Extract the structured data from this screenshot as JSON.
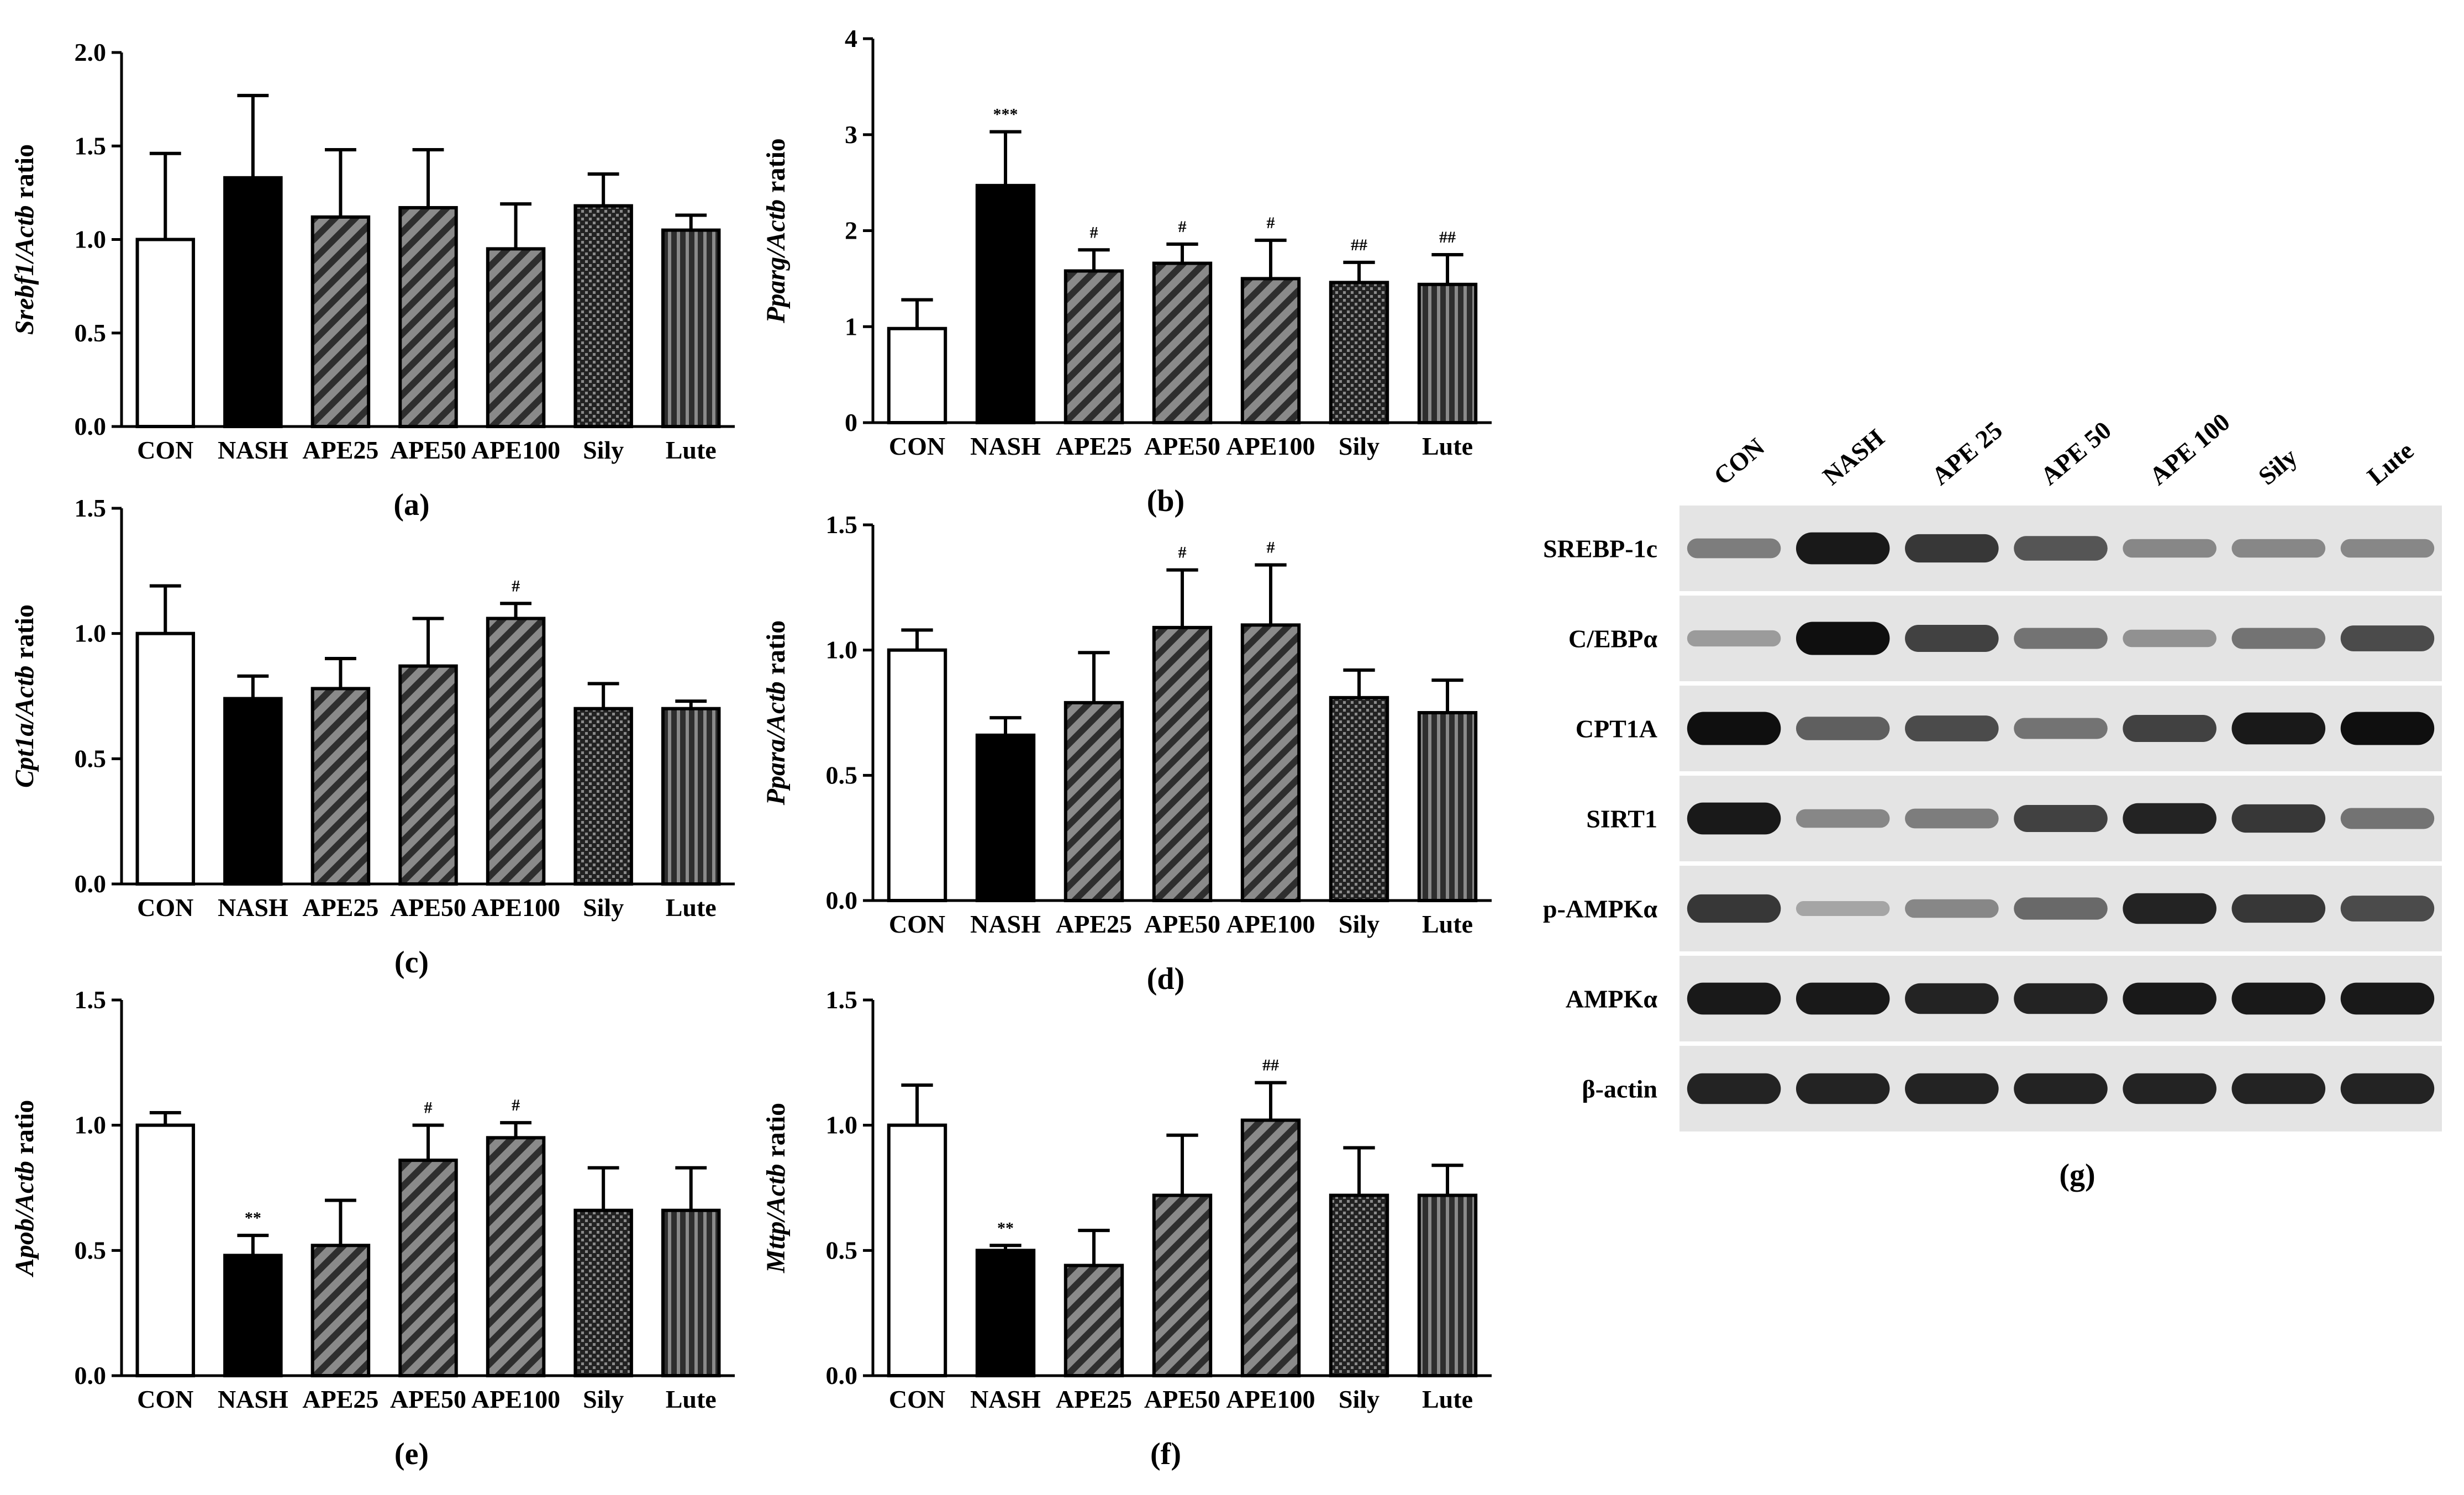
{
  "categories": [
    "CON",
    "NASH",
    "APE25",
    "APE50",
    "APE100",
    "Sily",
    "Lute"
  ],
  "chart_data": [
    {
      "type": "bar",
      "panel": "(a)",
      "ylabel_italic": "Srebf1/Actb",
      "ylabel_plain": " ratio",
      "ylim": [
        0,
        2.0
      ],
      "yticks": [
        "0.0",
        "0.5",
        "1.0",
        "1.5",
        "2.0"
      ],
      "values": [
        1.0,
        1.33,
        1.12,
        1.17,
        0.95,
        1.18,
        1.05
      ],
      "errors": [
        0.46,
        0.44,
        0.36,
        0.31,
        0.24,
        0.17,
        0.08
      ],
      "annotations": [
        "",
        "",
        "",
        "",
        "",
        "",
        ""
      ]
    },
    {
      "type": "bar",
      "panel": "(b)",
      "ylabel_italic": "Pparg/Actb",
      "ylabel_plain": " ratio",
      "ylim": [
        0,
        4
      ],
      "yticks": [
        "0",
        "1",
        "2",
        "3",
        "4"
      ],
      "values": [
        0.98,
        2.47,
        1.58,
        1.66,
        1.5,
        1.46,
        1.44
      ],
      "errors": [
        0.3,
        0.56,
        0.22,
        0.2,
        0.4,
        0.21,
        0.31
      ],
      "annotations": [
        "",
        "***",
        "#",
        "#",
        "#",
        "##",
        "##"
      ]
    },
    {
      "type": "bar",
      "panel": "(c)",
      "ylabel_italic": "Cpt1a/Actb",
      "ylabel_plain": " ratio",
      "ylim": [
        0,
        1.5
      ],
      "yticks": [
        "0.0",
        "0.5",
        "1.0",
        "1.5"
      ],
      "values": [
        1.0,
        0.74,
        0.78,
        0.87,
        1.06,
        0.7,
        0.7
      ],
      "errors": [
        0.19,
        0.09,
        0.12,
        0.19,
        0.06,
        0.1,
        0.03
      ],
      "annotations": [
        "",
        "",
        "",
        "",
        "#",
        "",
        ""
      ]
    },
    {
      "type": "bar",
      "panel": "(d)",
      "ylabel_italic": "Ppara/Actb",
      "ylabel_plain": " ratio",
      "ylim": [
        0,
        1.5
      ],
      "yticks": [
        "0.0",
        "0.5",
        "1.0",
        "1.5"
      ],
      "values": [
        1.0,
        0.66,
        0.79,
        1.09,
        1.1,
        0.81,
        0.75
      ],
      "errors": [
        0.08,
        0.07,
        0.2,
        0.23,
        0.24,
        0.11,
        0.13
      ],
      "annotations": [
        "",
        "",
        "",
        "#",
        "#",
        "",
        ""
      ]
    },
    {
      "type": "bar",
      "panel": "(e)",
      "ylabel_italic": "Apob/Actb",
      "ylabel_plain": " ratio",
      "ylim": [
        0,
        1.5
      ],
      "yticks": [
        "0.0",
        "0.5",
        "1.0",
        "1.5"
      ],
      "values": [
        1.0,
        0.48,
        0.52,
        0.86,
        0.95,
        0.66,
        0.66
      ],
      "errors": [
        0.05,
        0.08,
        0.18,
        0.14,
        0.06,
        0.17,
        0.17
      ],
      "annotations": [
        "",
        "**",
        "",
        "#",
        "#",
        "",
        ""
      ]
    },
    {
      "type": "bar",
      "panel": "(f)",
      "ylabel_italic": "Mttp/Actb",
      "ylabel_plain": " ratio",
      "ylim": [
        0,
        1.5
      ],
      "yticks": [
        "0.0",
        "0.5",
        "1.0",
        "1.5"
      ],
      "values": [
        1.0,
        0.5,
        0.44,
        0.72,
        1.02,
        0.72,
        0.72
      ],
      "errors": [
        0.16,
        0.02,
        0.14,
        0.24,
        0.15,
        0.19,
        0.12
      ],
      "annotations": [
        "",
        "**",
        "",
        "",
        "##",
        "",
        ""
      ]
    }
  ],
  "western_blot": {
    "panel": "(g)",
    "lanes": [
      "CON",
      "NASH",
      "APE 25",
      "APE 50",
      "APE 100",
      "Sily",
      "Lute"
    ],
    "rows": [
      {
        "label": "SREBP-1c",
        "intensity": [
          0.45,
          0.95,
          0.8,
          0.65,
          0.4,
          0.4,
          0.4
        ]
      },
      {
        "label": "C/EBPα",
        "intensity": [
          0.3,
          1.0,
          0.75,
          0.5,
          0.35,
          0.5,
          0.7
        ]
      },
      {
        "label": "CPT1A",
        "intensity": [
          1.0,
          0.6,
          0.7,
          0.5,
          0.75,
          0.95,
          1.0
        ]
      },
      {
        "label": "SIRT1",
        "intensity": [
          0.95,
          0.4,
          0.45,
          0.75,
          0.9,
          0.8,
          0.5
        ]
      },
      {
        "label": "p-AMPKα",
        "intensity": [
          0.8,
          0.25,
          0.4,
          0.55,
          0.9,
          0.8,
          0.7
        ]
      },
      {
        "label": "AMPKα",
        "intensity": [
          0.95,
          0.95,
          0.9,
          0.9,
          0.95,
          0.95,
          0.95
        ]
      },
      {
        "label": "β-actin",
        "intensity": [
          0.9,
          0.9,
          0.9,
          0.9,
          0.9,
          0.9,
          0.9
        ]
      }
    ]
  }
}
